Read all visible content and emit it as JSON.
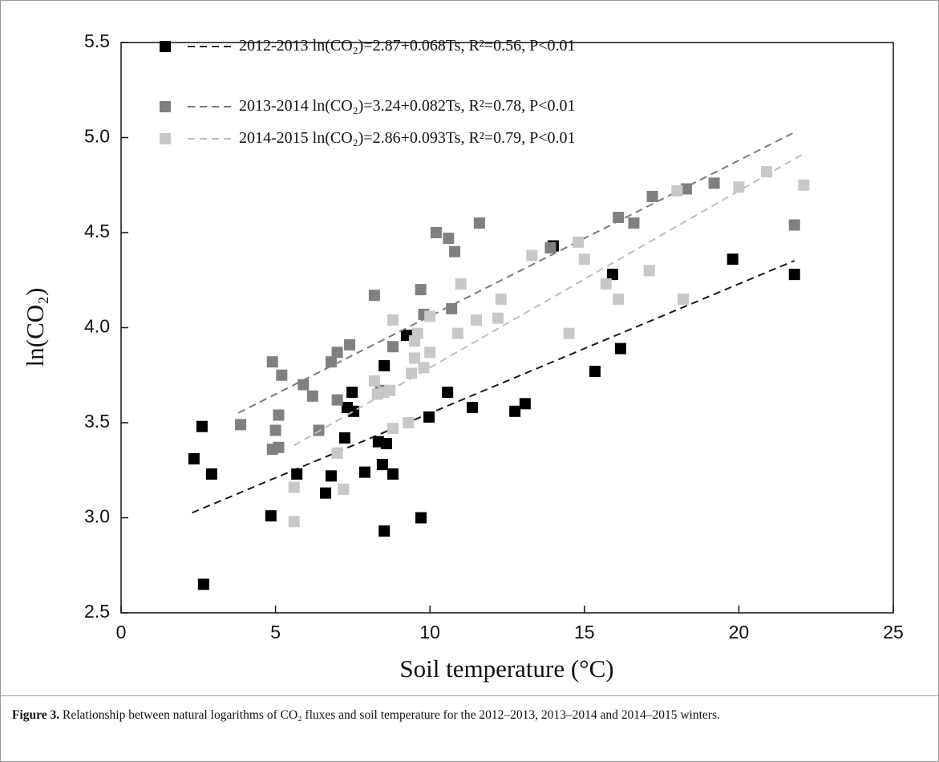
{
  "chart_data": {
    "type": "scatter",
    "xlabel": "Soil temperature (°C)",
    "ylabel": "ln(CO₂)",
    "xlim": [
      0,
      25
    ],
    "ylim": [
      2.5,
      5.5
    ],
    "xticks": [
      0,
      5,
      10,
      15,
      20,
      25
    ],
    "yticks": [
      2.5,
      {
        "value": 3,
        "label": "3.0"
      },
      3.5,
      {
        "value": 4,
        "label": "4.0"
      },
      4.5,
      {
        "value": 5,
        "label": "5.0"
      },
      5.5
    ],
    "legend": "upper left",
    "series": [
      {
        "name": "2012-2013",
        "equation": "ln(CO₂)=2.87+0.068Ts, R²=0.56, P<0.01",
        "color": "#000000",
        "line_color": "#1a1a1a",
        "fit": {
          "intercept": 2.87,
          "slope": 0.068,
          "x": [
            2.3,
            21.8
          ]
        },
        "x": [
          2.36,
          2.62,
          2.93,
          2.67,
          4.85,
          5.69,
          6.62,
          6.8,
          7.24,
          7.32,
          7.48,
          7.53,
          7.89,
          8.33,
          8.46,
          8.52,
          8.59,
          8.52,
          8.8,
          9.24,
          9.71,
          9.97,
          10.57,
          11.37,
          12.75,
          13.08,
          13.99,
          15.34,
          15.91,
          16.17,
          19.8,
          21.8
        ],
        "values": [
          3.31,
          3.48,
          3.23,
          2.65,
          3.01,
          3.23,
          3.13,
          3.22,
          3.42,
          3.58,
          3.66,
          3.56,
          3.24,
          3.4,
          3.28,
          3.8,
          3.39,
          2.93,
          3.23,
          3.96,
          3.0,
          3.53,
          3.66,
          3.58,
          3.56,
          3.6,
          4.43,
          3.77,
          4.28,
          3.89,
          4.36,
          4.28
        ]
      },
      {
        "name": "2013-2014",
        "equation": "ln(CO₂)=3.24+0.082Ts, R²=0.78, P<0.01",
        "color": "#808080",
        "line_color": "#7a7a7a",
        "fit": {
          "intercept": 3.24,
          "slope": 0.082,
          "x": [
            3.8,
            21.8
          ]
        },
        "x": [
          3.87,
          4.9,
          4.9,
          5.0,
          5.1,
          5.2,
          5.1,
          5.9,
          6.2,
          6.4,
          6.8,
          7.0,
          7.0,
          7.4,
          8.2,
          8.4,
          8.8,
          9.7,
          9.8,
          10.2,
          10.6,
          10.7,
          10.8,
          11.6,
          13.9,
          16.1,
          16.6,
          17.2,
          18.3,
          19.2,
          21.8
        ],
        "values": [
          3.49,
          3.82,
          3.36,
          3.46,
          3.54,
          3.75,
          3.37,
          3.7,
          3.64,
          3.46,
          3.82,
          3.87,
          3.62,
          3.91,
          4.17,
          3.67,
          3.9,
          4.2,
          4.07,
          4.5,
          4.47,
          4.1,
          4.4,
          4.55,
          4.42,
          4.58,
          4.55,
          4.69,
          4.73,
          4.76,
          4.54
        ]
      },
      {
        "name": "2014-2015",
        "equation": "ln(CO₂)=2.86+0.093Ts, R²=0.79, P<0.01",
        "color": "#c8c8c8",
        "line_color": "#bdbdbd",
        "fit": {
          "intercept": 2.86,
          "slope": 0.093,
          "x": [
            5.6,
            22.1
          ]
        },
        "x": [
          5.6,
          5.6,
          7.0,
          7.2,
          8.2,
          8.3,
          8.5,
          8.7,
          8.8,
          8.8,
          9.3,
          9.4,
          9.5,
          9.5,
          9.6,
          9.8,
          10.0,
          10.0,
          10.9,
          11.0,
          11.5,
          12.2,
          12.3,
          13.3,
          14.5,
          14.8,
          15.0,
          15.7,
          16.1,
          17.1,
          18.2,
          18.0,
          20.0,
          20.9,
          22.1
        ],
        "values": [
          3.16,
          2.98,
          3.34,
          3.15,
          3.72,
          3.65,
          3.66,
          3.67,
          3.47,
          4.04,
          3.5,
          3.76,
          3.84,
          3.93,
          3.97,
          3.79,
          3.87,
          4.06,
          3.97,
          4.23,
          4.04,
          4.05,
          4.15,
          4.38,
          3.97,
          4.45,
          4.36,
          4.23,
          4.15,
          4.3,
          4.15,
          4.72,
          4.74,
          4.82,
          4.75
        ]
      }
    ]
  },
  "caption": {
    "label": "Figure 3.",
    "text": "Relationship between natural logarithms of CO₂ fluxes and soil temperature for the 2012–2013, 2013–2014 and 2014–2015 winters."
  }
}
